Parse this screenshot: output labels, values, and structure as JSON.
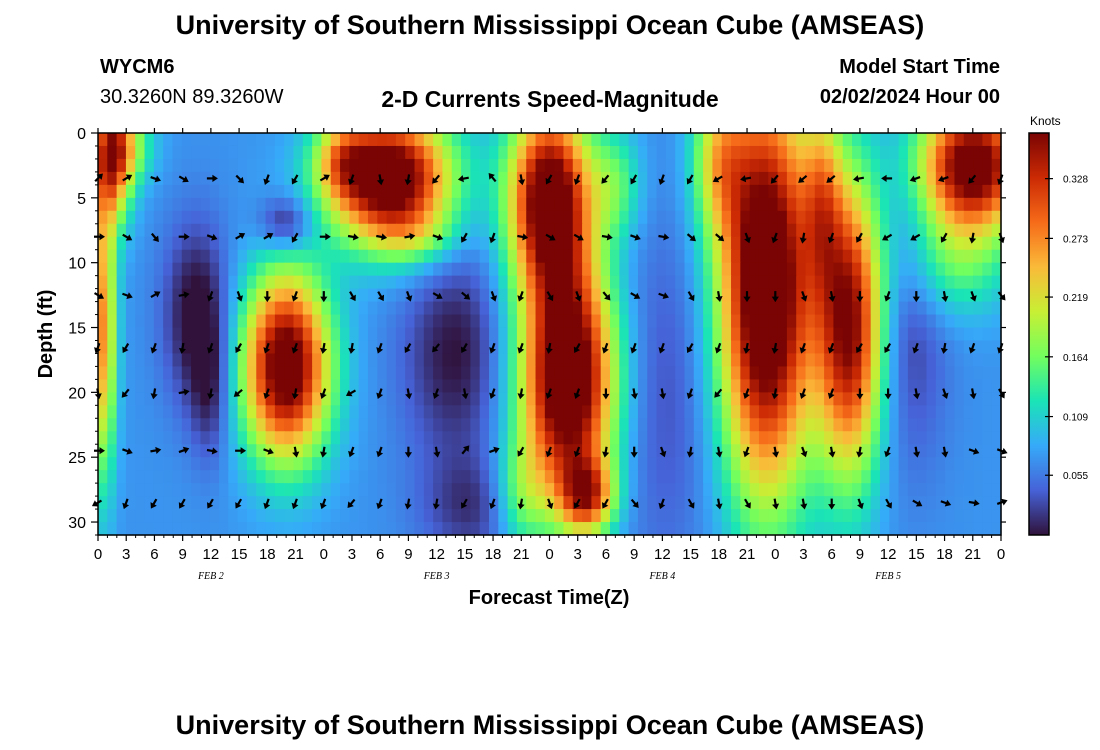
{
  "header": {
    "title": "University of Southern Mississippi Ocean Cube (AMSEAS)",
    "station_id": "WYCM6",
    "station_coords": "30.3260N  89.3260W",
    "chart_subtitle": "2-D Currents Speed-Magnitude",
    "model_start_label": "Model Start Time",
    "model_start_value": "02/02/2024 Hour 00"
  },
  "footer": {
    "title": "University of Southern Mississippi Ocean Cube (AMSEAS)"
  },
  "colors": {
    "background": "#ffffff",
    "arrow": "#000000",
    "colormap": [
      "#30123b",
      "#4662d7",
      "#36aaf9",
      "#1ae4b6",
      "#72fe5e",
      "#c8ef34",
      "#faba39",
      "#f66b19",
      "#cb2a04",
      "#7a0403"
    ]
  },
  "chart_data": {
    "type": "heatmap",
    "title": "2-D Currents Speed-Magnitude",
    "xlabel": "Forecast Time(Z)",
    "ylabel": "Depth (ft)",
    "xlim": [
      0,
      96
    ],
    "ylim": [
      0,
      31
    ],
    "x_tick_values": [
      0,
      3,
      6,
      9,
      12,
      15,
      18,
      21,
      24,
      27,
      30,
      33,
      36,
      39,
      42,
      45,
      48,
      51,
      54,
      57,
      60,
      63,
      66,
      69,
      72,
      75,
      78,
      81,
      84,
      87,
      90,
      93,
      96
    ],
    "x_tick_labels": [
      "0",
      "3",
      "6",
      "9",
      "12",
      "15",
      "18",
      "21",
      "0",
      "3",
      "6",
      "9",
      "12",
      "15",
      "18",
      "21",
      "0",
      "3",
      "6",
      "9",
      "12",
      "15",
      "18",
      "21",
      "0",
      "3",
      "6",
      "9",
      "12",
      "15",
      "18",
      "21",
      "0"
    ],
    "date_labels": [
      {
        "label": "FEB 2",
        "hour": 12
      },
      {
        "label": "FEB 3",
        "hour": 36
      },
      {
        "label": "FEB 4",
        "hour": 60
      },
      {
        "label": "FEB 5",
        "hour": 84
      }
    ],
    "y_tick_values": [
      0,
      5,
      10,
      15,
      20,
      25,
      30
    ],
    "y_tick_labels": [
      "0",
      "5",
      "10",
      "15",
      "20",
      "25",
      "30"
    ],
    "colorbar": {
      "label": "Knots",
      "range": [
        0,
        0.37
      ],
      "tick_values": [
        0.055,
        0.109,
        0.164,
        0.219,
        0.273,
        0.328
      ],
      "tick_labels": [
        "0.055",
        "0.109",
        "0.164",
        "0.219",
        "0.273",
        "0.328"
      ]
    },
    "blobs": [
      {
        "t": 1.5,
        "d": 2,
        "st": 1.5,
        "sd": 3.5,
        "v": 0.22
      },
      {
        "t": 3,
        "d": 1,
        "st": 2,
        "sd": 2,
        "v": 0.1
      },
      {
        "t": 0.5,
        "d": 15,
        "st": 1,
        "sd": 8,
        "v": 0.2
      },
      {
        "t": 20,
        "d": 18,
        "st": 3.2,
        "sd": 5,
        "v": 0.34
      },
      {
        "t": 20,
        "d": 7,
        "st": 2,
        "sd": 1.5,
        "v": -0.08
      },
      {
        "t": 31,
        "d": 3.5,
        "st": 4.5,
        "sd": 3.5,
        "v": 0.36
      },
      {
        "t": 26,
        "d": 2,
        "st": 2,
        "sd": 2,
        "v": 0.1
      },
      {
        "t": 34,
        "d": 8,
        "st": 3,
        "sd": 1.5,
        "v": 0.05
      },
      {
        "t": 50,
        "d": 19,
        "st": 3.5,
        "sd": 6.5,
        "v": 0.38
      },
      {
        "t": 48,
        "d": 5,
        "st": 3,
        "sd": 5,
        "v": 0.34
      },
      {
        "t": 52,
        "d": 28,
        "st": 2,
        "sd": 2,
        "v": 0.2
      },
      {
        "t": 45,
        "d": 28,
        "st": 2,
        "sd": 3,
        "v": 0.08
      },
      {
        "t": 55,
        "d": 4,
        "st": 2,
        "sd": 3,
        "v": 0.08
      },
      {
        "t": 71,
        "d": 12,
        "st": 3.5,
        "sd": 11,
        "v": 0.38
      },
      {
        "t": 66,
        "d": 2,
        "st": 2,
        "sd": 4,
        "v": 0.12
      },
      {
        "t": 80,
        "d": 15,
        "st": 2.5,
        "sd": 8,
        "v": 0.3
      },
      {
        "t": 77,
        "d": 5,
        "st": 1.5,
        "sd": 5,
        "v": 0.12
      },
      {
        "t": 93,
        "d": 2.5,
        "st": 4,
        "sd": 3.5,
        "v": 0.34
      },
      {
        "t": 91,
        "d": 10,
        "st": 4,
        "sd": 3,
        "v": 0.08
      },
      {
        "t": 10.5,
        "d": 14,
        "st": 2.5,
        "sd": 5,
        "v": -0.08
      },
      {
        "t": 12,
        "d": 20,
        "st": 1.5,
        "sd": 4,
        "v": -0.05
      },
      {
        "t": 38,
        "d": 17,
        "st": 4,
        "sd": 6,
        "v": -0.07
      },
      {
        "t": 40,
        "d": 29,
        "st": 4,
        "sd": 3,
        "v": -0.05
      },
      {
        "t": 60,
        "d": 20,
        "st": 5,
        "sd": 10,
        "v": -0.04
      },
      {
        "t": 86,
        "d": 15,
        "st": 3,
        "sd": 8,
        "v": -0.05
      }
    ],
    "vector_depths": [
      3.5,
      8,
      12.5,
      16.5,
      20,
      24.5,
      28.5
    ],
    "vector_times": [
      0,
      3,
      6,
      9,
      12,
      15,
      18,
      21,
      24,
      27,
      30,
      33,
      36,
      39,
      42,
      45,
      48,
      51,
      54,
      57,
      60,
      63,
      66,
      69,
      72,
      75,
      78,
      81,
      84,
      87,
      90,
      93,
      96
    ],
    "vector_directions_deg": [
      [
        45,
        60,
        110,
        120,
        90,
        135,
        200,
        210,
        60,
        200,
        170,
        190,
        220,
        260,
        320,
        170,
        210,
        200,
        220,
        210,
        200,
        210,
        240,
        260,
        220,
        230,
        230,
        260,
        270,
        250,
        250,
        220,
        200
      ],
      [
        90,
        120,
        140,
        90,
        110,
        60,
        60,
        210,
        90,
        100,
        100,
        80,
        110,
        210,
        200,
        100,
        120,
        120,
        100,
        110,
        100,
        130,
        130,
        160,
        200,
        190,
        200,
        210,
        240,
        240,
        210,
        190,
        160
      ],
      [
        120,
        110,
        60,
        80,
        200,
        160,
        180,
        200,
        180,
        150,
        150,
        160,
        120,
        130,
        160,
        200,
        150,
        160,
        140,
        120,
        110,
        150,
        170,
        180,
        180,
        160,
        170,
        180,
        200,
        180,
        170,
        160,
        140
      ],
      [
        200,
        210,
        200,
        190,
        200,
        210,
        200,
        200,
        190,
        190,
        200,
        210,
        220,
        210,
        200,
        200,
        190,
        210,
        200,
        200,
        200,
        210,
        200,
        190,
        190,
        200,
        200,
        210,
        210,
        200,
        190,
        200,
        200
      ],
      [
        170,
        220,
        190,
        80,
        190,
        230,
        200,
        190,
        200,
        240,
        200,
        170,
        200,
        170,
        200,
        190,
        200,
        200,
        180,
        170,
        170,
        200,
        220,
        200,
        190,
        200,
        200,
        180,
        180,
        170,
        160,
        170,
        150
      ],
      [
        90,
        110,
        80,
        70,
        100,
        90,
        110,
        170,
        190,
        200,
        200,
        180,
        170,
        40,
        70,
        210,
        200,
        200,
        190,
        180,
        160,
        190,
        170,
        200,
        170,
        160,
        170,
        190,
        200,
        170,
        170,
        110,
        110
      ],
      [
        240,
        200,
        210,
        210,
        210,
        210,
        200,
        200,
        200,
        220,
        200,
        190,
        190,
        210,
        200,
        190,
        160,
        210,
        210,
        140,
        200,
        150,
        170,
        150,
        170,
        170,
        180,
        160,
        150,
        120,
        110,
        100,
        70
      ]
    ]
  }
}
